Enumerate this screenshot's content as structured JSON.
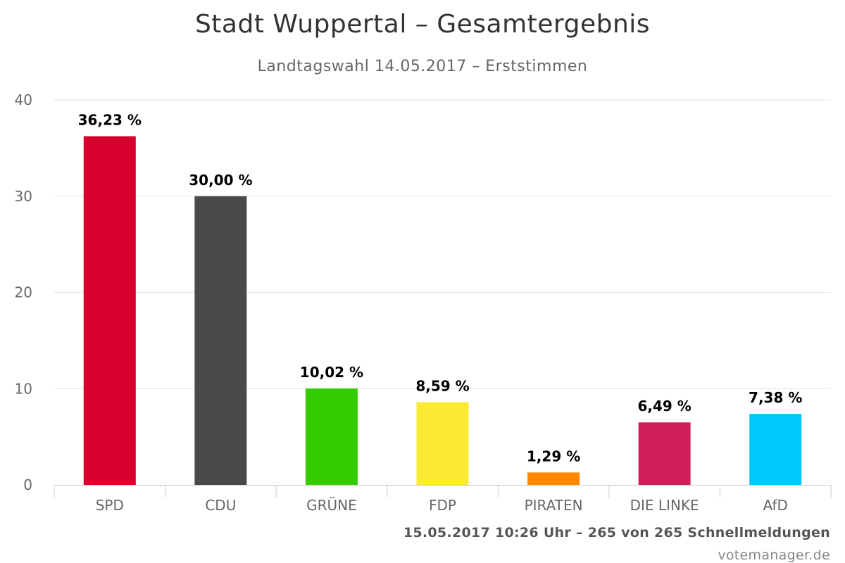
{
  "chart_data": {
    "type": "bar",
    "title": "Stadt Wuppertal – Gesamtergebnis",
    "subtitle": "Landtagswahl 14.05.2017 – Erststimmen",
    "xlabel": "",
    "ylabel": "",
    "ylim": [
      0,
      40
    ],
    "yticks": [
      0,
      10,
      20,
      30,
      40
    ],
    "grid": true,
    "legend": "none",
    "categories": [
      "SPD",
      "CDU",
      "GRÜNE",
      "FDP",
      "PIRATEN",
      "DIE LINKE",
      "AfD"
    ],
    "values": [
      36.23,
      30.0,
      10.02,
      8.59,
      1.29,
      6.49,
      7.38
    ],
    "data_labels": [
      "36,23 %",
      "30,00 %",
      "10,02 %",
      "8,59 %",
      "1,29 %",
      "6,49 %",
      "7,38 %"
    ],
    "colors": [
      "#d7002c",
      "#4a4a4a",
      "#33cc00",
      "#fbec33",
      "#ff8800",
      "#cf1f58",
      "#00c8ff"
    ]
  },
  "footer": {
    "status": "15.05.2017 10:26 Uhr – 265 von 265 Schnellmeldungen",
    "credit": "votemanager.de"
  },
  "colors": {
    "grid": "#e6e6e6",
    "axis": "#cccccc",
    "title": "#333333",
    "subtitle": "#666666"
  }
}
